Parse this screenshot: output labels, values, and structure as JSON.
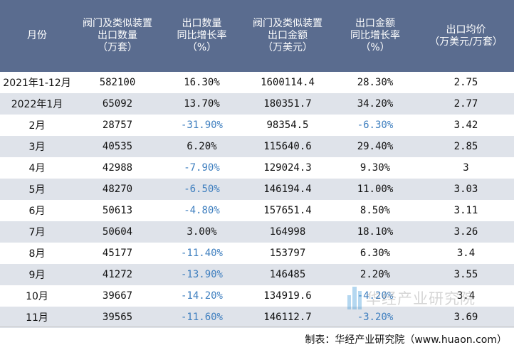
{
  "headers": [
    "月份",
    "阀门及类似装置\n出口数量\n（万套）",
    "出口数量\n同比增长率\n（%）",
    "阀门及类似装置\n出口金额\n（万美元）",
    "出口金额\n同比增长率\n（%）",
    "出口均价\n（万美元/万套）"
  ],
  "rows": [
    {
      "month": "2021年1-12月",
      "qty": "582100",
      "qty_yoy": "16.30%",
      "amount": "1600114.4",
      "amount_yoy": "28.30%",
      "price": "2.75"
    },
    {
      "month": "2022年1月",
      "qty": "65092",
      "qty_yoy": "13.70%",
      "amount": "180351.7",
      "amount_yoy": "34.20%",
      "price": "2.77"
    },
    {
      "month": "2月",
      "qty": "28757",
      "qty_yoy": "-31.90%",
      "amount": "98354.5",
      "amount_yoy": "-6.30%",
      "price": "3.42"
    },
    {
      "month": "3月",
      "qty": "40535",
      "qty_yoy": "6.20%",
      "amount": "115640.6",
      "amount_yoy": "29.40%",
      "price": "2.85"
    },
    {
      "month": "4月",
      "qty": "42988",
      "qty_yoy": "-7.90%",
      "amount": "129024.3",
      "amount_yoy": "9.30%",
      "price": "3"
    },
    {
      "month": "5月",
      "qty": "48270",
      "qty_yoy": "-6.50%",
      "amount": "146194.4",
      "amount_yoy": "11.00%",
      "price": "3.03"
    },
    {
      "month": "6月",
      "qty": "50613",
      "qty_yoy": "-4.80%",
      "amount": "157651.4",
      "amount_yoy": "8.50%",
      "price": "3.11"
    },
    {
      "month": "7月",
      "qty": "50604",
      "qty_yoy": "3.00%",
      "amount": "164998",
      "amount_yoy": "18.10%",
      "price": "3.26"
    },
    {
      "month": "8月",
      "qty": "45177",
      "qty_yoy": "-11.40%",
      "amount": "153797",
      "amount_yoy": "6.30%",
      "price": "3.4"
    },
    {
      "month": "9月",
      "qty": "41272",
      "qty_yoy": "-13.90%",
      "amount": "146485",
      "amount_yoy": "2.20%",
      "price": "3.55"
    },
    {
      "month": "10月",
      "qty": "39667",
      "qty_yoy": "-14.20%",
      "amount": "134919.6",
      "amount_yoy": "-4.20%",
      "price": "3.4"
    },
    {
      "month": "11月",
      "qty": "39565",
      "qty_yoy": "-11.60%",
      "amount": "146112.7",
      "amount_yoy": "-3.20%",
      "price": "3.69"
    }
  ],
  "source": "制表：华经产业研究院（www.huaon.com）",
  "watermark": "华经产业研究院",
  "colors": {
    "header_bg": "#5a6c8f",
    "stripe": "#dfe3ea",
    "negative": "#3f7fbf",
    "logo": "#2b8fd6"
  }
}
